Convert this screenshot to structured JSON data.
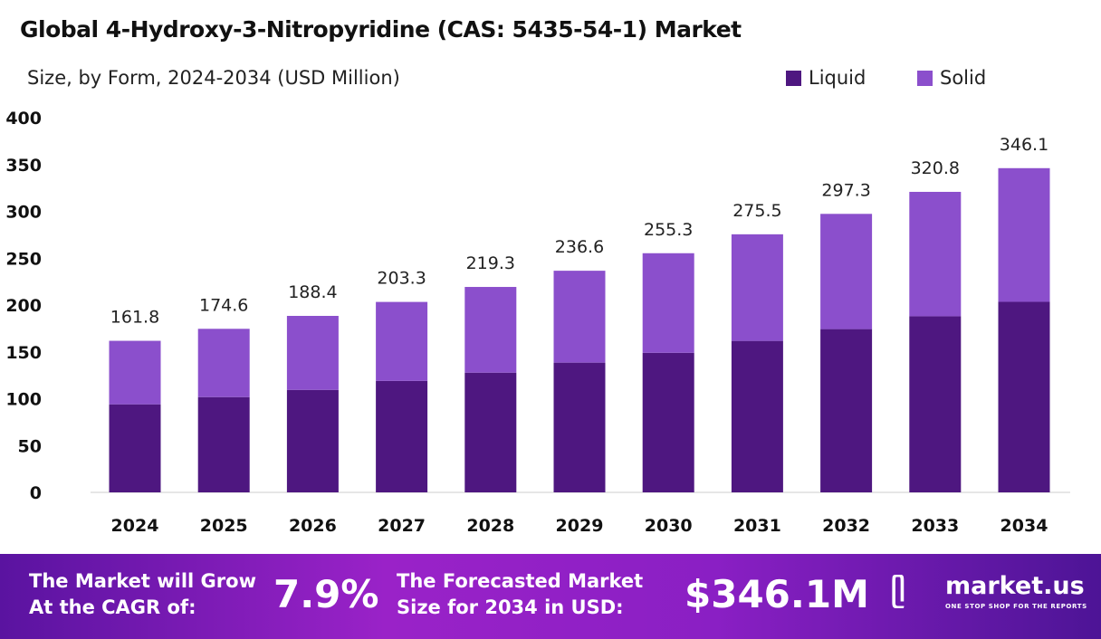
{
  "chart_data": {
    "type": "bar",
    "stacked": true,
    "title": "Global 4-Hydroxy-3-Nitropyridine (CAS: 5435-54-1) Market",
    "subtitle": "Size, by Form, 2024-2034 (USD Million)",
    "categories": [
      "2024",
      "2025",
      "2026",
      "2027",
      "2028",
      "2029",
      "2030",
      "2031",
      "2032",
      "2033",
      "2034"
    ],
    "series": [
      {
        "name": "Liquid",
        "color": "#4e1780",
        "values": [
          94.0,
          101.7,
          109.4,
          119.0,
          127.8,
          138.5,
          149.0,
          161.7,
          174.3,
          188.0,
          203.4
        ]
      },
      {
        "name": "Solid",
        "color": "#8b4fcc",
        "values": [
          67.8,
          72.9,
          79.0,
          84.3,
          91.5,
          98.1,
          106.3,
          113.8,
          123.0,
          132.8,
          142.7
        ]
      }
    ],
    "totals": [
      "161.8",
      "174.6",
      "188.4",
      "203.3",
      "219.3",
      "236.6",
      "255.3",
      "275.5",
      "297.3",
      "320.8",
      "346.1"
    ],
    "ylim": [
      0,
      400
    ],
    "yticks": [
      "0",
      "50",
      "100",
      "150",
      "200",
      "250",
      "300",
      "350",
      "400"
    ],
    "grid": false,
    "legend_position": "top-right"
  },
  "footer": {
    "cagr_line1": "The Market will Grow",
    "cagr_line2": "At the CAGR of:",
    "cagr_value": "7.9%",
    "forecast_line1": "The Forecasted Market",
    "forecast_line2": "Size for 2034 in USD:",
    "forecast_value": "$346.1M",
    "brand": "market.us",
    "tagline": "ONE STOP SHOP FOR THE REPORTS"
  }
}
